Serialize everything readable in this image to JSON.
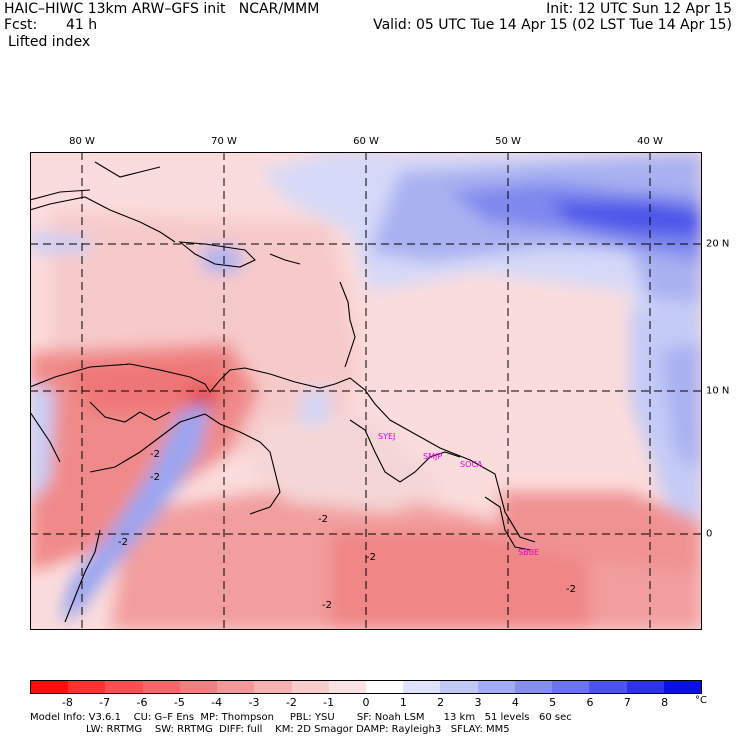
{
  "header": {
    "model_line": "HAIC–HIWC 13km ARW–GFS init   NCAR/MMM",
    "init_line": "Init: 12 UTC Sun 12 Apr 15",
    "fcst_label": "Fcst:",
    "fcst_value": "41 h",
    "valid_line": "Valid: 05 UTC Tue 14 Apr 15 (02 LST Tue 14 Apr 15)",
    "field_name": "Lifted index"
  },
  "map": {
    "lon_labels": [
      "80 W",
      "70 W",
      "60 W",
      "50 W",
      "40 W"
    ],
    "lat_labels": [
      "20 N",
      "10 N",
      "0"
    ],
    "stations": [
      "SYEJ",
      "SMJP",
      "SOCA",
      "SBBE"
    ],
    "contour_labels": [
      "-2",
      "-2",
      "-2",
      "-2",
      "-2",
      "-2",
      "-2"
    ]
  },
  "colorbar": {
    "ticks": [
      "-8",
      "-7",
      "-6",
      "-5",
      "-4",
      "-3",
      "-2",
      "-1",
      "0",
      "1",
      "2",
      "3",
      "4",
      "5",
      "6",
      "7",
      "8"
    ],
    "unit": "°C",
    "colors": [
      "#ff1010",
      "#ff3232",
      "#f75050",
      "#f06868",
      "#ef8080",
      "#f29a9a",
      "#f5b2b2",
      "#f9cccc",
      "#fbe2e2",
      "#ffffff",
      "#dfe2fb",
      "#c2c8f6",
      "#a3acf2",
      "#8590ef",
      "#6a74ec",
      "#4b55e9",
      "#2c34e6",
      "#0a12e2"
    ]
  },
  "footer": {
    "line1": "Model Info: V3.6.1    CU: G–F Ens  MP: Thompson     PBL: YSU       SF: Noah LSM      13 km   51 levels   60 sec",
    "line2": "LW: RRTMG    SW: RRTMG  DIFF: full    KM: 2D Smagor DAMP: Rayleigh3   SFLAY: MM5"
  }
}
